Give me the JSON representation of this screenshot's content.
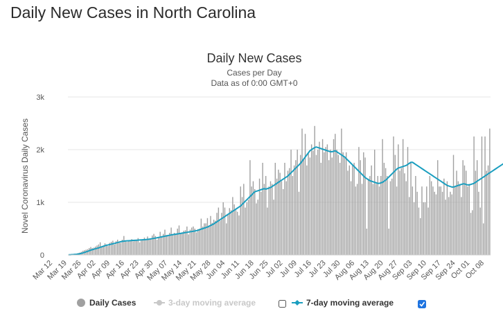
{
  "page": {
    "title": "Daily New Cases in North Carolina"
  },
  "chart_data": {
    "type": "bar",
    "title": "Daily New Cases",
    "subtitle_lines": [
      "Cases per Day",
      "Data as of 0:00 GMT+0"
    ],
    "ylabel": "Novel Coronavirus Daily Cases",
    "xlabel": "",
    "ylim": [
      0,
      3000
    ],
    "yticks": [
      0,
      1000,
      2000,
      3000
    ],
    "ytick_labels": [
      "0",
      "1k",
      "2k",
      "3k"
    ],
    "grid": true,
    "xtick_labels": [
      "Mar 12",
      "Mar 19",
      "Mar 26",
      "Apr 02",
      "Apr 09",
      "Apr 16",
      "Apr 23",
      "Apr 30",
      "May 07",
      "May 14",
      "May 21",
      "May 28",
      "Jun 04",
      "Jun 11",
      "Jun 18",
      "Jun 25",
      "Jul 02",
      "Jul 09",
      "Jul 16",
      "Jul 23",
      "Jul 30",
      "Aug 06",
      "Aug 13",
      "Aug 20",
      "Aug 27",
      "Sep 03",
      "Sep 10",
      "Sep 17",
      "Sep 24",
      "Oct 01",
      "Oct 08"
    ],
    "series": [
      {
        "name": "Daily Cases",
        "type": "bar",
        "color": "#a0a0a0",
        "visible": true,
        "values": [
          3,
          5,
          10,
          15,
          20,
          25,
          35,
          45,
          60,
          80,
          90,
          100,
          110,
          130,
          150,
          130,
          140,
          160,
          180,
          200,
          240,
          150,
          180,
          220,
          200,
          170,
          230,
          250,
          270,
          200,
          260,
          290,
          250,
          230,
          290,
          360,
          270,
          250,
          270,
          280,
          300,
          260,
          270,
          290,
          320,
          240,
          290,
          300,
          330,
          300,
          350,
          310,
          300,
          370,
          400,
          360,
          290,
          330,
          440,
          360,
          400,
          480,
          380,
          360,
          420,
          520,
          380,
          420,
          400,
          500,
          560,
          410,
          430,
          460,
          470,
          540,
          390,
          480,
          520,
          540,
          500,
          430,
          490,
          500,
          690,
          540,
          600,
          600,
          700,
          560,
          740,
          610,
          670,
          650,
          800,
          900,
          650,
          800,
          1000,
          900,
          600,
          780,
          890,
          850,
          1100,
          960,
          850,
          820,
          750,
          1300,
          1100,
          1350,
          900,
          1000,
          1050,
          1800,
          1300,
          1400,
          1250,
          980,
          1050,
          1450,
          1200,
          1750,
          1350,
          1500,
          900,
          1300,
          1400,
          1350,
          1050,
          1750,
          1450,
          1620,
          1560,
          1400,
          1250,
          1750,
          1400,
          1600,
          1650,
          2000,
          1500,
          1700,
          1800,
          2000,
          1200,
          1900,
          2400,
          1800,
          2300,
          1700,
          1950,
          1850,
          2100,
          1980,
          2450,
          1900,
          2000,
          2150,
          1750,
          2200,
          1950,
          2050,
          2100,
          1800,
          2000,
          1850,
          2200,
          2300,
          2000,
          1900,
          1750,
          2400,
          1950,
          1850,
          1950,
          1600,
          1700,
          1400,
          1700,
          1750,
          1300,
          1350,
          2050,
          1800,
          1350,
          1950,
          1850,
          500,
          1450,
          1500,
          1700,
          1350,
          2000,
          1350,
          1500,
          1300,
          1500,
          2200,
          1750,
          1650,
          1500,
          500,
          1400,
          1450,
          2250,
          1900,
          1300,
          2100,
          1600,
          1650,
          2200,
          1550,
          1400,
          2050,
          1100,
          1750,
          1300,
          1000,
          1500,
          1200,
          900,
          700,
          1300,
          1000,
          1000,
          1300,
          900,
          1500,
          1400,
          1300,
          1200,
          1150,
          1800,
          1300,
          1300,
          1200,
          1450,
          1050,
          1400,
          1100,
          1200,
          1150,
          1900,
          1300,
          1600,
          1400,
          1350,
          1100,
          1800,
          1700,
          1600,
          1300,
          1350,
          800,
          850,
          2250,
          1600,
          1800,
          1200,
          900,
          2250,
          600,
          2250,
          1600,
          1700,
          2400
        ]
      },
      {
        "name": "3-day moving average",
        "type": "line",
        "color": "#c8c8c8",
        "visible": false
      },
      {
        "name": "7-day moving average",
        "type": "line",
        "color": "#1a9ebf",
        "visible": true,
        "values": [
          3,
          4,
          6,
          8,
          11,
          14,
          18,
          23,
          30,
          38,
          48,
          58,
          68,
          80,
          92,
          100,
          110,
          118,
          126,
          135,
          145,
          155,
          165,
          175,
          185,
          190,
          198,
          205,
          212,
          220,
          228,
          236,
          244,
          252,
          258,
          262,
          266,
          268,
          270,
          272,
          274,
          276,
          278,
          280,
          282,
          284,
          286,
          288,
          290,
          292,
          296,
          300,
          305,
          310,
          315,
          320,
          326,
          332,
          338,
          344,
          350,
          356,
          362,
          368,
          374,
          380,
          386,
          390,
          395,
          400,
          405,
          410,
          415,
          420,
          425,
          430,
          435,
          440,
          445,
          450,
          455,
          460,
          470,
          480,
          490,
          500,
          510,
          520,
          530,
          545,
          560,
          575,
          590,
          610,
          630,
          650,
          670,
          690,
          710,
          730,
          750,
          770,
          790,
          810,
          830,
          850,
          870,
          890,
          910,
          930,
          960,
          990,
          1020,
          1050,
          1080,
          1110,
          1140,
          1170,
          1200,
          1210,
          1220,
          1230,
          1240,
          1250,
          1260,
          1250,
          1260,
          1270,
          1280,
          1300,
          1320,
          1340,
          1360,
          1380,
          1400,
          1420,
          1440,
          1460,
          1480,
          1500,
          1530,
          1560,
          1590,
          1620,
          1650,
          1680,
          1710,
          1740,
          1780,
          1820,
          1860,
          1900,
          1940,
          1980,
          2000,
          2020,
          2040,
          2050,
          2040,
          2030,
          2020,
          2010,
          2000,
          1990,
          1980,
          1970,
          1960,
          1960,
          1970,
          1980,
          1960,
          1940,
          1920,
          1900,
          1880,
          1860,
          1830,
          1800,
          1770,
          1740,
          1710,
          1680,
          1650,
          1620,
          1590,
          1560,
          1530,
          1500,
          1470,
          1450,
          1430,
          1410,
          1400,
          1390,
          1380,
          1370,
          1360,
          1360,
          1370,
          1380,
          1400,
          1420,
          1450,
          1480,
          1510,
          1540,
          1570,
          1600,
          1630,
          1650,
          1660,
          1670,
          1680,
          1690,
          1700,
          1720,
          1740,
          1760,
          1760,
          1740,
          1720,
          1700,
          1680,
          1660,
          1640,
          1620,
          1600,
          1580,
          1560,
          1540,
          1520,
          1500,
          1480,
          1460,
          1440,
          1420,
          1400,
          1380,
          1360,
          1340,
          1320,
          1310,
          1300,
          1290,
          1290,
          1300,
          1310,
          1320,
          1330,
          1340,
          1350,
          1350,
          1340,
          1330,
          1330,
          1340,
          1350,
          1360,
          1380,
          1400,
          1420,
          1440,
          1460,
          1480,
          1500,
          1520,
          1540,
          1560,
          1580,
          1600,
          1620,
          1640,
          1660,
          1680,
          1700,
          1720,
          1740,
          1760,
          1780
        ]
      }
    ],
    "legend": {
      "placement": "bottom",
      "items": [
        {
          "label": "Daily Cases",
          "symbol": "circle",
          "color": "#a0a0a0",
          "checkbox": false,
          "active": true
        },
        {
          "label": "3-day moving average",
          "symbol": "line-circle",
          "color": "#c8c8c8",
          "checkbox": true,
          "checked": false,
          "active": false
        },
        {
          "label": "7-day moving average",
          "symbol": "line-diamond",
          "color": "#1a9ebf",
          "checkbox": true,
          "checked": true,
          "active": true
        }
      ]
    }
  }
}
